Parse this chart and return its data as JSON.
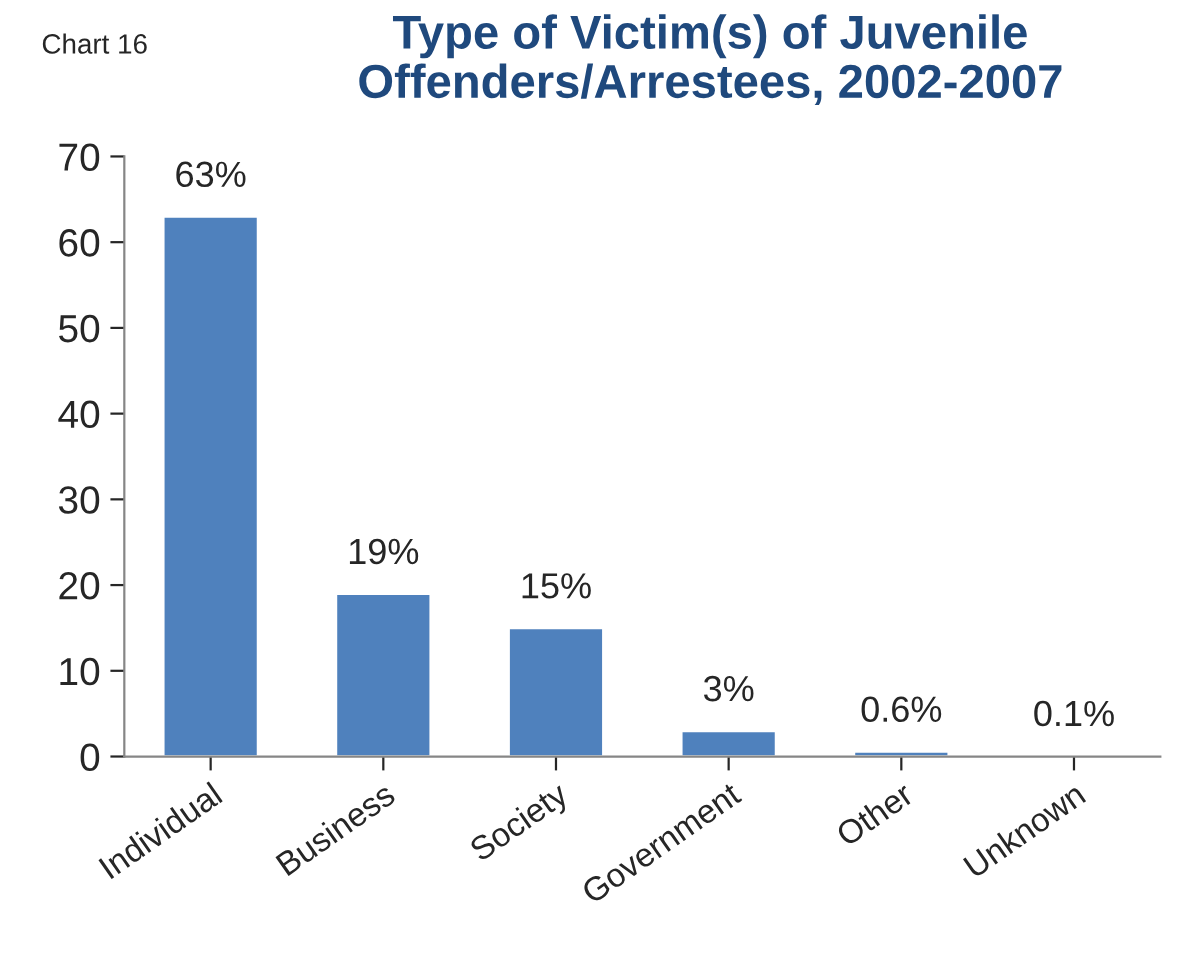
{
  "chart_data": {
    "type": "bar",
    "title": "Type of Victim(s) of Juvenile\nOffenders/Arrestees, 2002-2007",
    "annotations": [
      "Chart 16"
    ],
    "categories": [
      "Individual",
      "Business",
      "Society",
      "Government",
      "Other",
      "Unknown"
    ],
    "values": [
      63,
      19,
      15,
      3,
      0.6,
      0.1
    ],
    "value_labels": [
      "63%",
      "19%",
      "15%",
      "3%",
      "0.6%",
      "0.1%"
    ],
    "color": "#4f81bd",
    "ylim": [
      0,
      70
    ],
    "yticks": [
      0,
      10,
      20,
      30,
      40,
      50,
      60,
      70
    ],
    "grid": false,
    "legend": false
  }
}
